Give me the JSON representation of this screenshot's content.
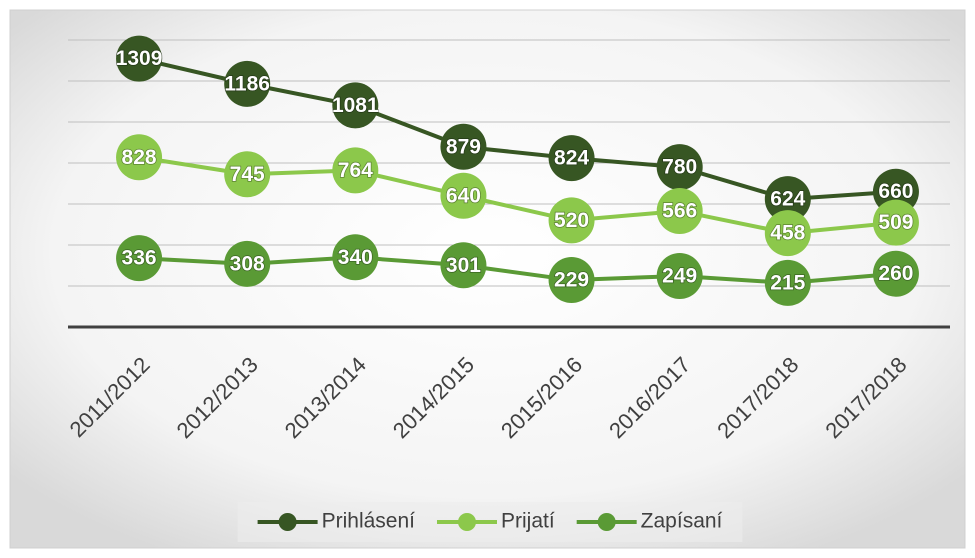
{
  "chart_data": {
    "type": "line",
    "categories": [
      "2011/2012",
      "2012/2013",
      "2013/2014",
      "2014/2015",
      "2015/2016",
      "2016/2017",
      "2017/2018",
      "2017/2018"
    ],
    "series": [
      {
        "name": "Prihlásení",
        "color": "#375623",
        "values": [
          1309,
          1186,
          1081,
          879,
          824,
          780,
          624,
          660
        ]
      },
      {
        "name": "Prijatí",
        "color": "#8cc84b",
        "values": [
          828,
          745,
          764,
          640,
          520,
          566,
          458,
          509
        ]
      },
      {
        "name": "Zapísaní",
        "color": "#5a9a35",
        "values": [
          336,
          308,
          340,
          301,
          229,
          249,
          215,
          260
        ]
      }
    ],
    "ylim": [
      0,
      1400
    ],
    "yticks": [
      0,
      200,
      400,
      600,
      800,
      1000,
      1200,
      1400
    ],
    "grid": true,
    "legend": "bottom"
  }
}
